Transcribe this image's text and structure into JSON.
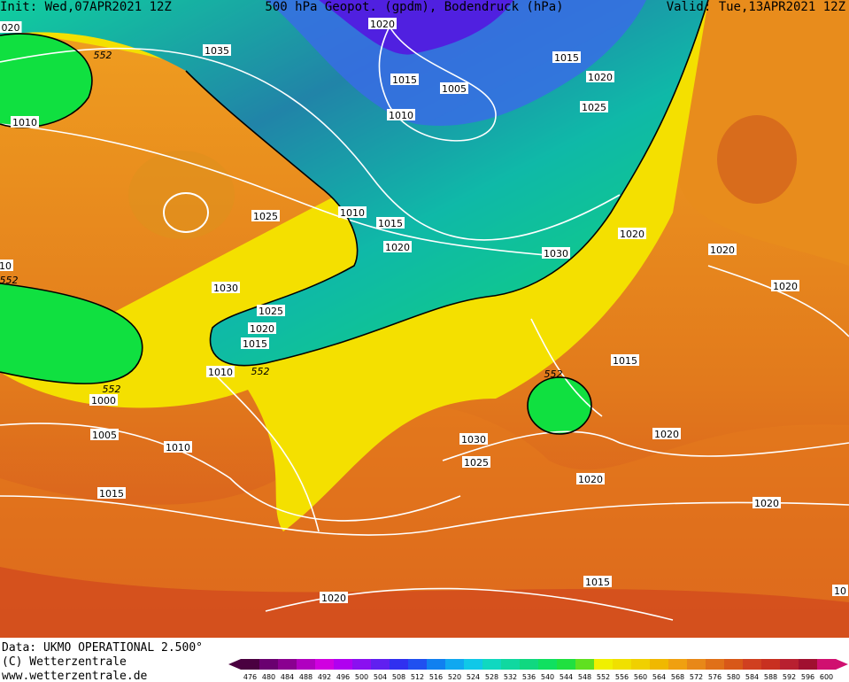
{
  "header": {
    "init": "Init: Wed,07APR2021 12Z",
    "title": "500 hPa Geopot. (gpdm), Bodendruck (hPa)",
    "valid": "Valid: Tue,13APR2021 12Z"
  },
  "map": {
    "contour_labels": [
      "020",
      "1035",
      "552",
      "1010",
      "1020",
      "1015",
      "1005",
      "1010",
      "1015",
      "1020",
      "1025",
      "1025",
      "1010",
      "1015",
      "1020",
      "1020",
      "1030",
      "1020",
      "10",
      "552",
      "1030",
      "1025",
      "1020",
      "1020",
      "1015",
      "1010",
      "552",
      "552",
      "1015",
      "552",
      "1000",
      "1005",
      "1010",
      "1030",
      "1020",
      "1025",
      "1020",
      "1015",
      "1020",
      "1015",
      "1020",
      "10"
    ]
  },
  "footer": {
    "data": "Data: UKMO OPERATIONAL 2.500°",
    "copyright": "(C) Wetterzentrale",
    "url": "www.wetterzentrale.de"
  },
  "scale": {
    "labels": [
      476,
      480,
      484,
      488,
      492,
      496,
      500,
      504,
      508,
      512,
      516,
      520,
      524,
      528,
      532,
      536,
      540,
      544,
      548,
      552,
      556,
      560,
      564,
      568,
      572,
      576,
      580,
      584,
      588,
      592,
      596,
      600
    ],
    "colors": [
      "#4a0040",
      "#6a0070",
      "#8a0090",
      "#b000c0",
      "#d000e0",
      "#b000f0",
      "#8a10f0",
      "#6020f0",
      "#3030f0",
      "#2050f0",
      "#1080f0",
      "#10a8f0",
      "#10c8e8",
      "#10d8c0",
      "#10d8a0",
      "#10d880",
      "#10e060",
      "#20e040",
      "#60e020",
      "#f0f000",
      "#f0e000",
      "#f0d000",
      "#f0b800",
      "#f0a010",
      "#e88818",
      "#e07018",
      "#d85818",
      "#d04020",
      "#c83020",
      "#b82030",
      "#a01030",
      "#d01070"
    ]
  }
}
